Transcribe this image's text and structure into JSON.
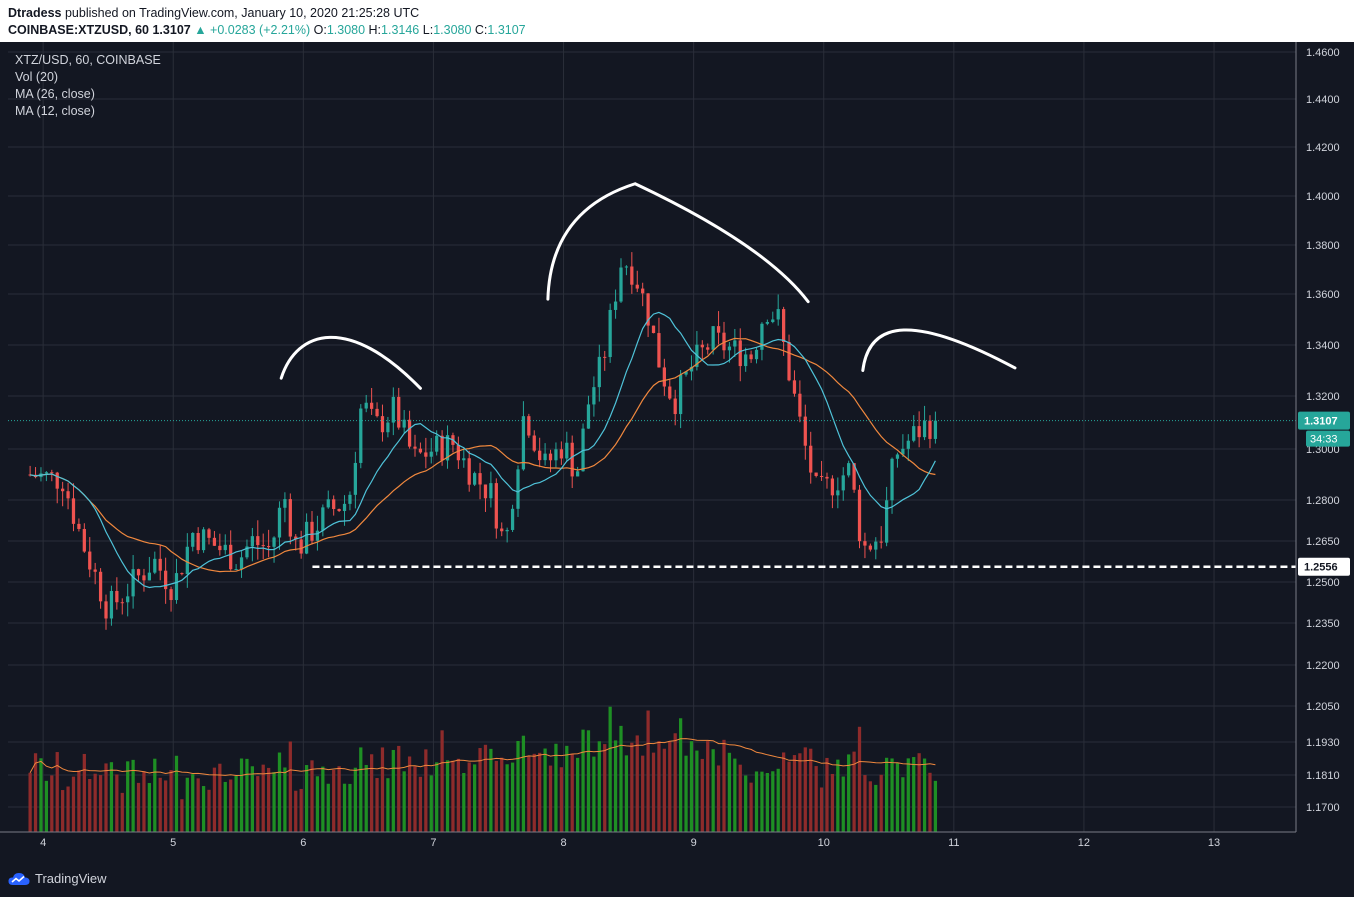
{
  "header": {
    "author": "Dtradess",
    "published_text": "published on TradingView.com, January 10, 2020 21:25:28 UTC",
    "symbol_line": "COINBASE:XTZUSD, 60",
    "last": "1.3107",
    "change": "▲ +0.0283 (+2.21%)",
    "open_label": "O:",
    "open": "1.3080",
    "high_label": "H:",
    "high": "1.3146",
    "low_label": "L:",
    "low": "1.3080",
    "close_label": "C:",
    "close": "1.3107"
  },
  "legend": {
    "title": "XTZ/USD, 60, COINBASE",
    "vol": "Vol (20)",
    "ma26": "MA (26, close)",
    "ma12": "MA (12, close)"
  },
  "footer": {
    "brand": "TradingView"
  },
  "colors": {
    "background": "#131722",
    "grid": "#2a2e39",
    "up": "#26a69a",
    "down": "#ef5350",
    "vol_up": "#1e8f24",
    "vol_down": "#8e2b2b",
    "ma12": "#4fc3d9",
    "ma26": "#f0883e",
    "annotation": "#ffffff"
  },
  "chart_data": {
    "type": "candlestick",
    "x_ticks": [
      "4",
      "5",
      "6",
      "7",
      "8",
      "9",
      "10",
      "11",
      "12",
      "13"
    ],
    "y_ticks": [
      "1.4600",
      "1.4400",
      "1.4200",
      "1.4000",
      "1.3800",
      "1.3600",
      "1.3400",
      "1.3200",
      "1.3000",
      "1.2800",
      "1.2650",
      "1.2500",
      "1.2350",
      "1.2200",
      "1.2050",
      "1.1930",
      "1.1810",
      "1.1700"
    ],
    "last_price_label": "1.3107",
    "countdown_label": "34:33",
    "support_label": "1.2556",
    "support_level": 1.2556,
    "last_price": 1.3107,
    "annotations": [
      "left shoulder",
      "head",
      "right shoulder"
    ],
    "anchors": [
      [
        3.9,
        1.29
      ],
      [
        4.15,
        1.288
      ],
      [
        4.3,
        1.265
      ],
      [
        4.5,
        1.24
      ],
      [
        4.7,
        1.25
      ],
      [
        4.85,
        1.258
      ],
      [
        5.0,
        1.248
      ],
      [
        5.15,
        1.268
      ],
      [
        5.3,
        1.264
      ],
      [
        5.5,
        1.258
      ],
      [
        5.6,
        1.265
      ],
      [
        5.75,
        1.262
      ],
      [
        5.85,
        1.282
      ],
      [
        5.95,
        1.262
      ],
      [
        6.05,
        1.268
      ],
      [
        6.2,
        1.276
      ],
      [
        6.35,
        1.28
      ],
      [
        6.45,
        1.318
      ],
      [
        6.55,
        1.308
      ],
      [
        6.7,
        1.315
      ],
      [
        6.85,
        1.296
      ],
      [
        7.0,
        1.3
      ],
      [
        7.15,
        1.302
      ],
      [
        7.3,
        1.29
      ],
      [
        7.45,
        1.282
      ],
      [
        7.55,
        1.262
      ],
      [
        7.7,
        1.315
      ],
      [
        7.85,
        1.293
      ],
      [
        8.0,
        1.302
      ],
      [
        8.1,
        1.29
      ],
      [
        8.2,
        1.32
      ],
      [
        8.3,
        1.333
      ],
      [
        8.45,
        1.375
      ],
      [
        8.55,
        1.368
      ],
      [
        8.65,
        1.352
      ],
      [
        8.75,
        1.33
      ],
      [
        8.85,
        1.318
      ],
      [
        9.0,
        1.333
      ],
      [
        9.15,
        1.342
      ],
      [
        9.3,
        1.338
      ],
      [
        9.45,
        1.336
      ],
      [
        9.55,
        1.355
      ],
      [
        9.65,
        1.35
      ],
      [
        9.75,
        1.325
      ],
      [
        9.85,
        1.302
      ],
      [
        9.95,
        1.282
      ],
      [
        10.1,
        1.288
      ],
      [
        10.2,
        1.292
      ],
      [
        10.3,
        1.262
      ],
      [
        10.45,
        1.268
      ],
      [
        10.55,
        1.298
      ],
      [
        10.65,
        1.303
      ],
      [
        10.75,
        1.308
      ],
      [
        10.87,
        1.3107
      ]
    ],
    "volume_anchors": [
      [
        3.9,
        1.183
      ],
      [
        4.2,
        1.176
      ],
      [
        4.5,
        1.178
      ],
      [
        4.9,
        1.176
      ],
      [
        5.3,
        1.177
      ],
      [
        5.6,
        1.178
      ],
      [
        6.0,
        1.177
      ],
      [
        6.4,
        1.18
      ],
      [
        6.7,
        1.18
      ],
      [
        6.9,
        1.182
      ],
      [
        7.2,
        1.185
      ],
      [
        7.5,
        1.179
      ],
      [
        7.8,
        1.185
      ],
      [
        8.0,
        1.183
      ],
      [
        8.3,
        1.188
      ],
      [
        8.6,
        1.19
      ],
      [
        8.9,
        1.188
      ],
      [
        9.1,
        1.186
      ],
      [
        9.3,
        1.183
      ],
      [
        9.5,
        1.178
      ],
      [
        9.8,
        1.18
      ],
      [
        10.1,
        1.18
      ],
      [
        10.4,
        1.18
      ],
      [
        10.6,
        1.181
      ],
      [
        10.87,
        1.177
      ]
    ],
    "x_range": [
      3.73,
      13.63
    ],
    "ylim": [
      1.165,
      1.465
    ]
  }
}
